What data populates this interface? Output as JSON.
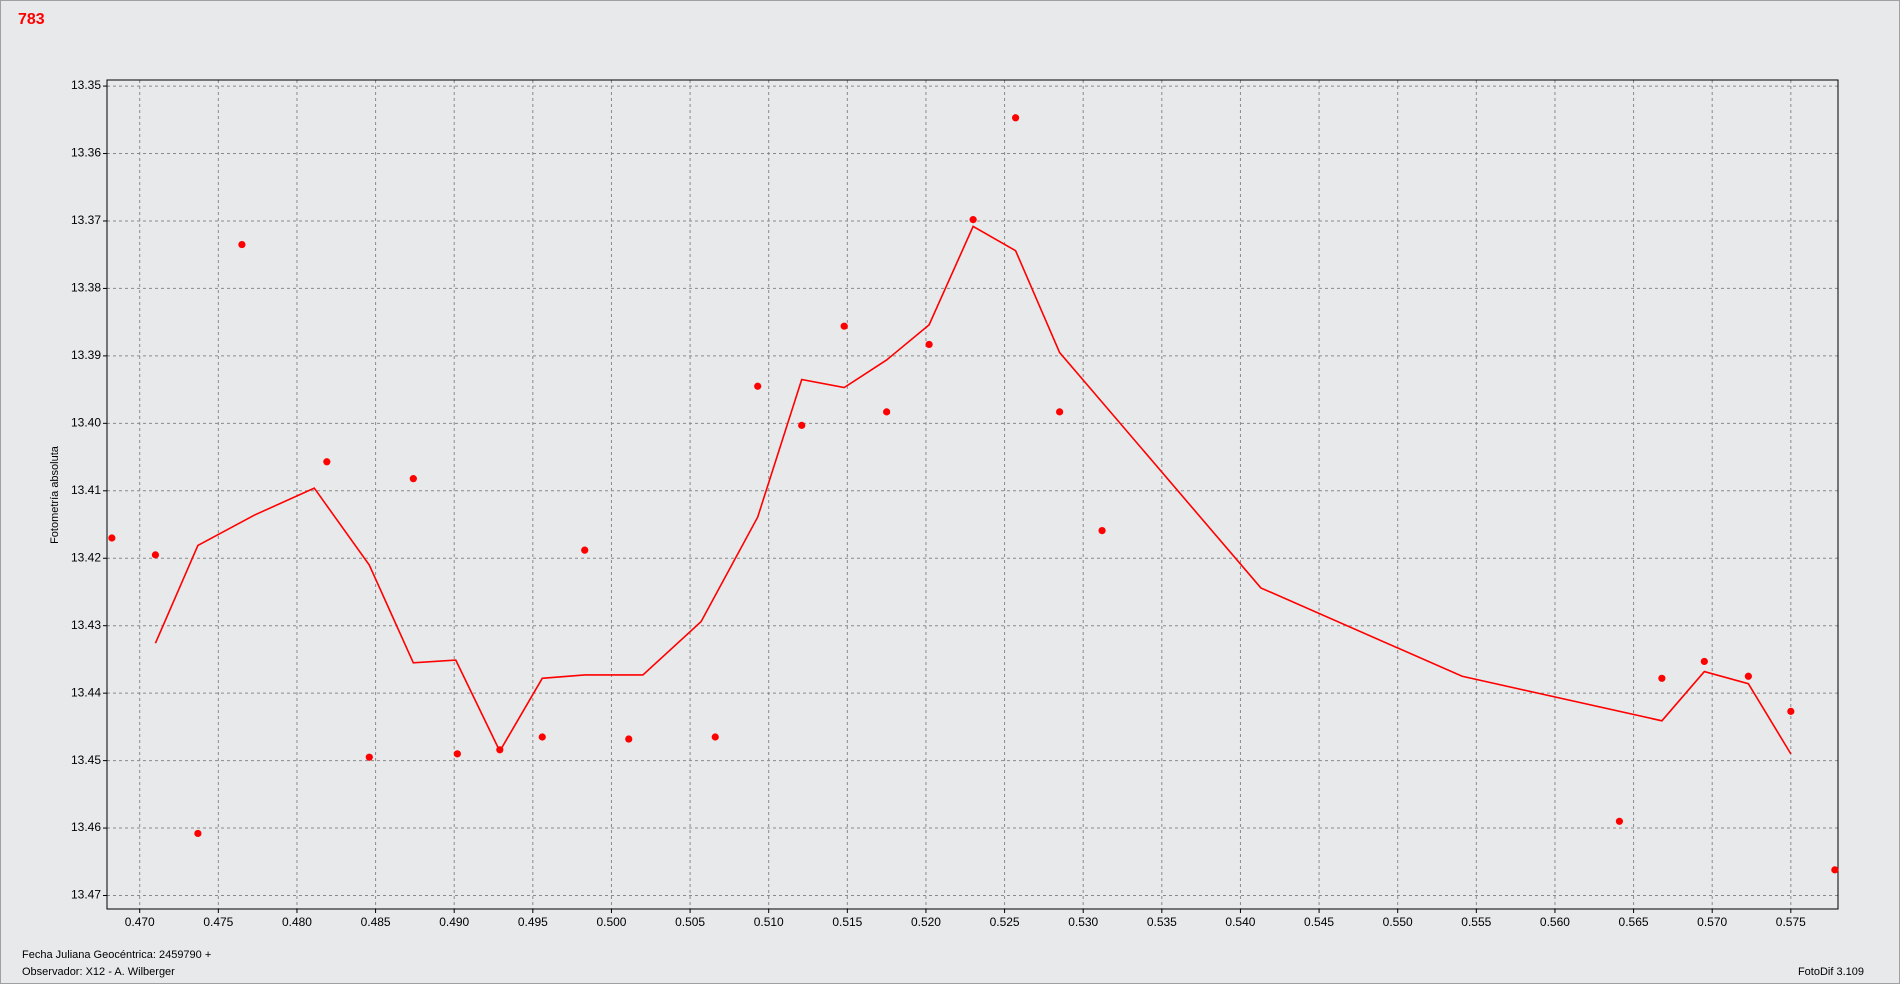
{
  "chart_data": {
    "type": "scatter",
    "title": "783",
    "y_label": "Fotometría absoluta",
    "x_label": "Fecha Juliana Geocéntrica: 2459790 +",
    "observer": "Observador: X12 - A. Wilberger",
    "software": "FotoDif 3.109",
    "grid": true,
    "xlim": [
      0.46792,
      0.578
    ],
    "ylim": [
      13.472,
      13.3491
    ],
    "xticks": [
      {
        "value": 0.47,
        "label": "0.470"
      },
      0.475,
      {
        "value": 0.48,
        "label": "0.480"
      },
      0.485,
      {
        "value": 0.49,
        "label": "0.490"
      },
      0.495,
      {
        "value": 0.5,
        "label": "0.500"
      },
      0.505,
      {
        "value": 0.51,
        "label": "0.510"
      },
      0.515,
      {
        "value": 0.52,
        "label": "0.520"
      },
      0.525,
      {
        "value": 0.53,
        "label": "0.530"
      },
      0.535,
      {
        "value": 0.54,
        "label": "0.540"
      },
      0.545,
      {
        "value": 0.55,
        "label": "0.550"
      },
      0.555,
      {
        "value": 0.56,
        "label": "0.560"
      },
      0.565,
      {
        "value": 0.57,
        "label": "0.570"
      },
      0.575
    ],
    "yticks": [
      13.35,
      13.36,
      13.37,
      13.38,
      13.39,
      {
        "value": 13.4,
        "label": "13.40"
      },
      13.41,
      13.42,
      13.43,
      13.44,
      13.45,
      13.46,
      13.47
    ],
    "series": [
      {
        "type": "scatter",
        "color": "#ff0000",
        "x": [
          0.46823,
          0.471,
          0.4737,
          0.4765,
          0.4819,
          0.4846,
          0.4874,
          0.4902,
          0.4929,
          0.4956,
          0.4983,
          0.5011,
          0.5066,
          0.5093,
          0.5121,
          0.5148,
          0.5175,
          0.5202,
          0.523,
          0.5257,
          0.5285,
          0.5312,
          0.5641,
          0.5668,
          0.5695,
          0.5723,
          0.575,
          0.5778
        ],
        "values": [
          13.417,
          13.4195,
          13.4608,
          13.3735,
          13.4057,
          13.4495,
          13.4082,
          13.449,
          13.4484,
          13.4465,
          13.4188,
          13.4468,
          13.4465,
          13.3945,
          13.4003,
          13.3856,
          13.3983,
          13.3883,
          13.3698,
          13.3547,
          13.3983,
          13.4159,
          13.459,
          13.4378,
          13.4353,
          13.4375,
          13.4427,
          13.4662
        ]
      },
      {
        "type": "line",
        "color": "#ff0000",
        "x": [
          0.471,
          0.4737,
          0.4773,
          0.4811,
          0.4846,
          0.4874,
          0.4901,
          0.4929,
          0.4956,
          0.4983,
          0.502,
          0.5057,
          0.5093,
          0.5121,
          0.5148,
          0.5175,
          0.5202,
          0.523,
          0.5257,
          0.5285,
          0.5413,
          0.5541,
          0.5668,
          0.5695,
          0.5723,
          0.575
        ],
        "values": [
          13.4326,
          13.4181,
          13.4136,
          13.4096,
          13.421,
          13.4355,
          13.4351,
          13.4486,
          13.4378,
          13.4373,
          13.4373,
          13.4294,
          13.4139,
          13.3935,
          13.3947,
          13.3906,
          13.3854,
          13.3708,
          13.3744,
          13.3895,
          13.4244,
          13.4375,
          13.4441,
          13.4368,
          13.4386,
          13.449
        ]
      }
    ]
  }
}
